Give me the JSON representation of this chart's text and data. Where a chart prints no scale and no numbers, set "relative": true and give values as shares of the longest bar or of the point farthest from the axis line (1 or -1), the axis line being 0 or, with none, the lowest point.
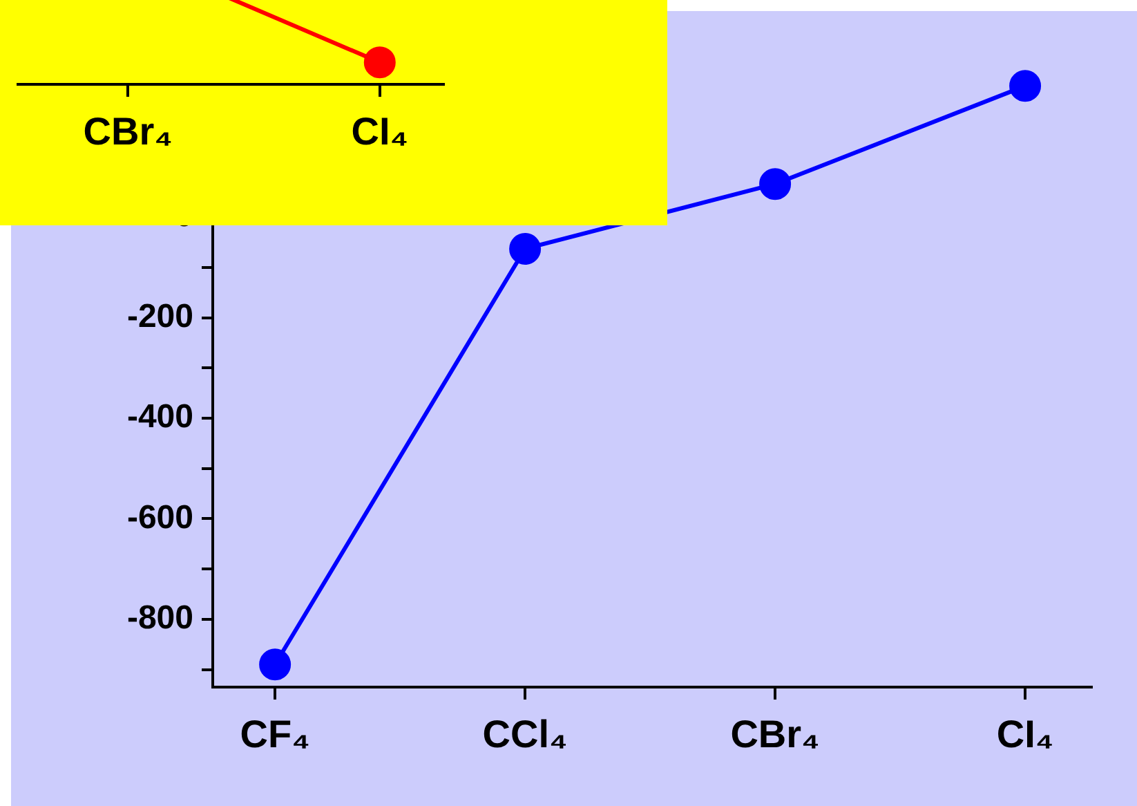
{
  "chart_data": [
    {
      "type": "line",
      "categories": [
        "CF₄",
        "CCl₄",
        "CBr₄",
        "CI₄"
      ],
      "series": [
        {
          "color": "#0000ff",
          "values": [
            -890,
            -63,
            66,
            261
          ]
        }
      ],
      "ylim": [
        -935,
        300
      ],
      "yticks": [
        {
          "value": -900,
          "label": null
        },
        -800,
        {
          "value": -700,
          "label": null
        },
        -600,
        {
          "value": -500,
          "label": null
        },
        -400,
        {
          "value": -300,
          "label": null
        },
        -200,
        {
          "value": -100,
          "label": null
        },
        0
      ],
      "grid": false,
      "legend": false,
      "marker": "circle",
      "line_style": "solid"
    },
    {
      "type": "line",
      "relative": true,
      "categories": [
        "CBr₄",
        "CI₄"
      ],
      "series": [
        {
          "color": "#ff0000",
          "values": [
            1,
            0.17
          ]
        }
      ],
      "grid": false,
      "legend": false,
      "marker": "circle",
      "line_style": "solid"
    }
  ]
}
